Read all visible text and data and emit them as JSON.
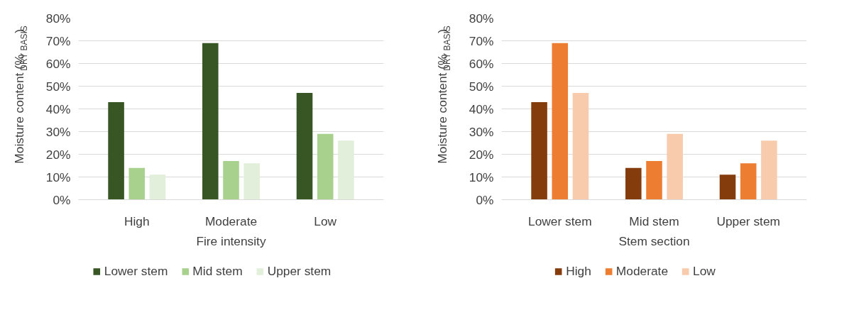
{
  "chart_data": [
    {
      "type": "bar",
      "categories": [
        "High",
        "Moderate",
        "Low"
      ],
      "xlabel": "Fire intensity",
      "ylabel": "Moisture content (%$_{DRY BASIS}$)",
      "ylim": [
        0,
        80
      ],
      "yticks": [
        {
          "value": 0,
          "label": "0%"
        },
        {
          "value": 10,
          "label": "10%"
        },
        {
          "value": 20,
          "label": "20%"
        },
        {
          "value": 30,
          "label": "30%"
        },
        {
          "value": 40,
          "label": "40%"
        },
        {
          "value": 50,
          "label": "50%"
        },
        {
          "value": 60,
          "label": "60%"
        },
        {
          "value": 70,
          "label": "70%"
        },
        {
          "value": 80,
          "label": "80%"
        }
      ],
      "grid": "y",
      "legend": "bottom",
      "series": [
        {
          "name": "Lower stem",
          "color": "#375623",
          "values": [
            43,
            69,
            47
          ]
        },
        {
          "name": "Mid stem",
          "color": "#a9d18e",
          "values": [
            14,
            17,
            29
          ]
        },
        {
          "name": "Upper stem",
          "color": "#e2efda",
          "values": [
            11,
            16,
            26
          ]
        }
      ]
    },
    {
      "type": "bar",
      "categories": [
        "Lower stem",
        "Mid stem",
        "Upper stem"
      ],
      "xlabel": "Stem section",
      "ylabel": "Moisture content (%$_{DRY BASIS}$)",
      "ylim": [
        0,
        80
      ],
      "yticks": [
        {
          "value": 0,
          "label": "0%"
        },
        {
          "value": 10,
          "label": "10%"
        },
        {
          "value": 20,
          "label": "20%"
        },
        {
          "value": 30,
          "label": "30%"
        },
        {
          "value": 40,
          "label": "40%"
        },
        {
          "value": 50,
          "label": "50%"
        },
        {
          "value": 60,
          "label": "60%"
        },
        {
          "value": 70,
          "label": "70%"
        },
        {
          "value": 80,
          "label": "80%"
        }
      ],
      "grid": "y",
      "legend": "bottom",
      "series": [
        {
          "name": "High",
          "color": "#843c0c",
          "values": [
            43,
            14,
            11
          ]
        },
        {
          "name": "Moderate",
          "color": "#ed7d31",
          "values": [
            69,
            17,
            16
          ]
        },
        {
          "name": "Low",
          "color": "#f8cbad",
          "values": [
            47,
            29,
            26
          ]
        }
      ]
    }
  ]
}
